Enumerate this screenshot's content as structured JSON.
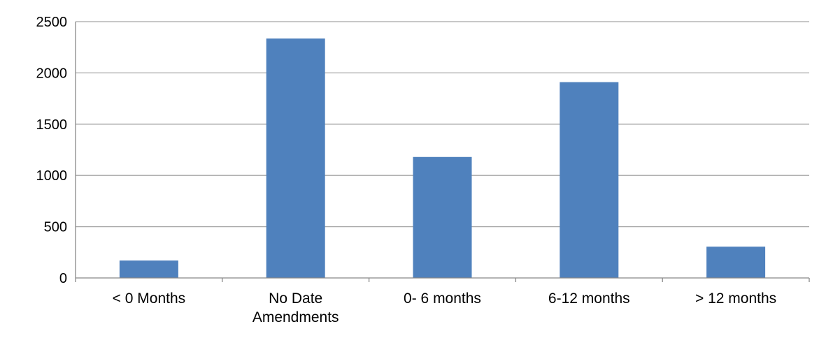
{
  "chart_data": {
    "type": "bar",
    "title": "",
    "xlabel": "",
    "ylabel": "",
    "categories": [
      "< 0 Months",
      "No Date Amendments",
      "0- 6 months",
      "6-12 months",
      "> 12 months"
    ],
    "category_label_lines": [
      [
        "< 0 Months"
      ],
      [
        "No Date",
        "Amendments"
      ],
      [
        "0- 6 months"
      ],
      [
        "6-12 months"
      ],
      [
        "> 12 months"
      ]
    ],
    "values": [
      170,
      2335,
      1180,
      1910,
      305
    ],
    "ylim": [
      0,
      2500
    ],
    "yticks": [
      "0",
      "500",
      "1000",
      "1500",
      "2000",
      "2500"
    ],
    "grid": true,
    "bar_color": "#4F81BD",
    "grid_color": "#A6A6A6",
    "axis_color": "#888888"
  }
}
